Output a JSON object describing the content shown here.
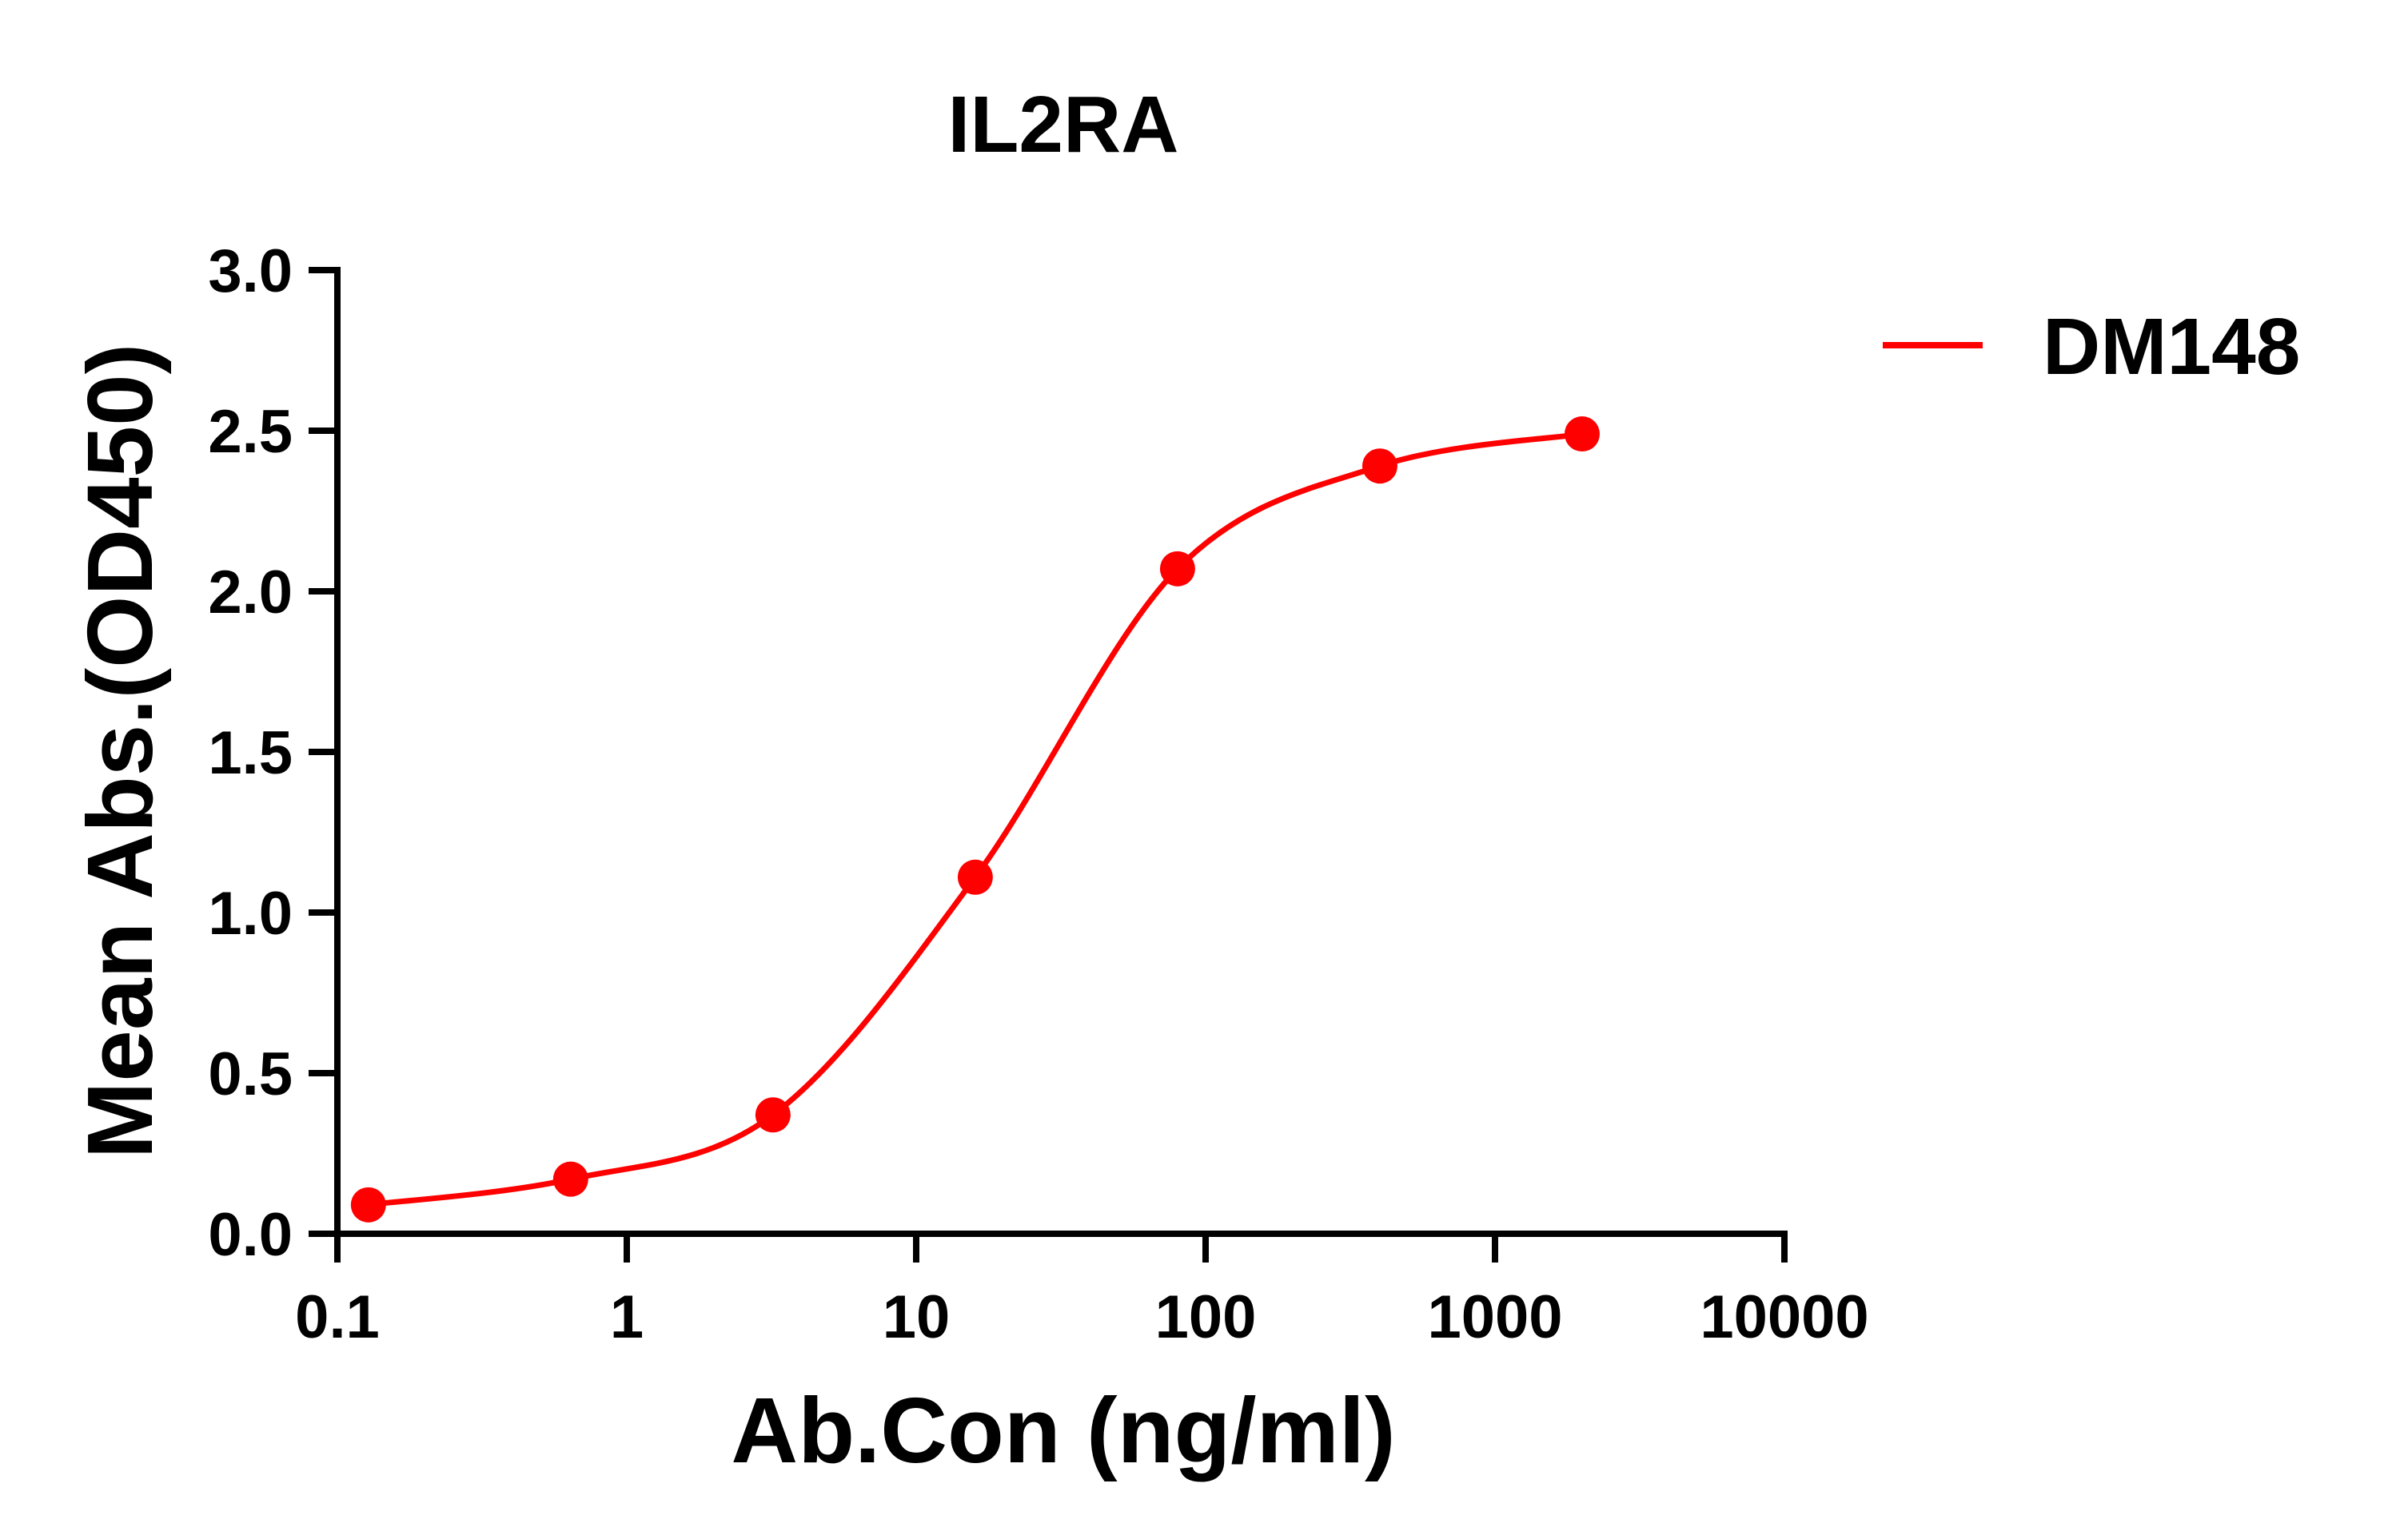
{
  "chart_data": {
    "type": "scatter",
    "title": "IL2RA",
    "xlabel": "Ab.Con (ng/ml)",
    "ylabel": "Mean Abs.(OD450)",
    "xscale": "log",
    "xlim": [
      0.1,
      10000
    ],
    "ylim": [
      0,
      3.0
    ],
    "x_ticks": [
      0.1,
      1,
      10,
      100,
      1000,
      10000
    ],
    "x_tick_labels": [
      "0.1",
      "1",
      "10",
      "100",
      "1000",
      "10000"
    ],
    "y_ticks": [
      0,
      0.5,
      1.0,
      1.5,
      2.0,
      2.5,
      3.0
    ],
    "y_tick_labels": [
      "0.0",
      "0.5",
      "1.0",
      "1.5",
      "2.0",
      "2.5",
      "3.0"
    ],
    "grid": false,
    "legend_position": "right",
    "series": [
      {
        "name": "DM148",
        "color": "#ff0000",
        "x": [
          0.128,
          0.64,
          3.2,
          16,
          80,
          400,
          2000
        ],
        "y": [
          0.09,
          0.17,
          0.37,
          1.11,
          2.07,
          2.39,
          2.49
        ],
        "fit": "4PL sigmoidal curve"
      }
    ]
  }
}
